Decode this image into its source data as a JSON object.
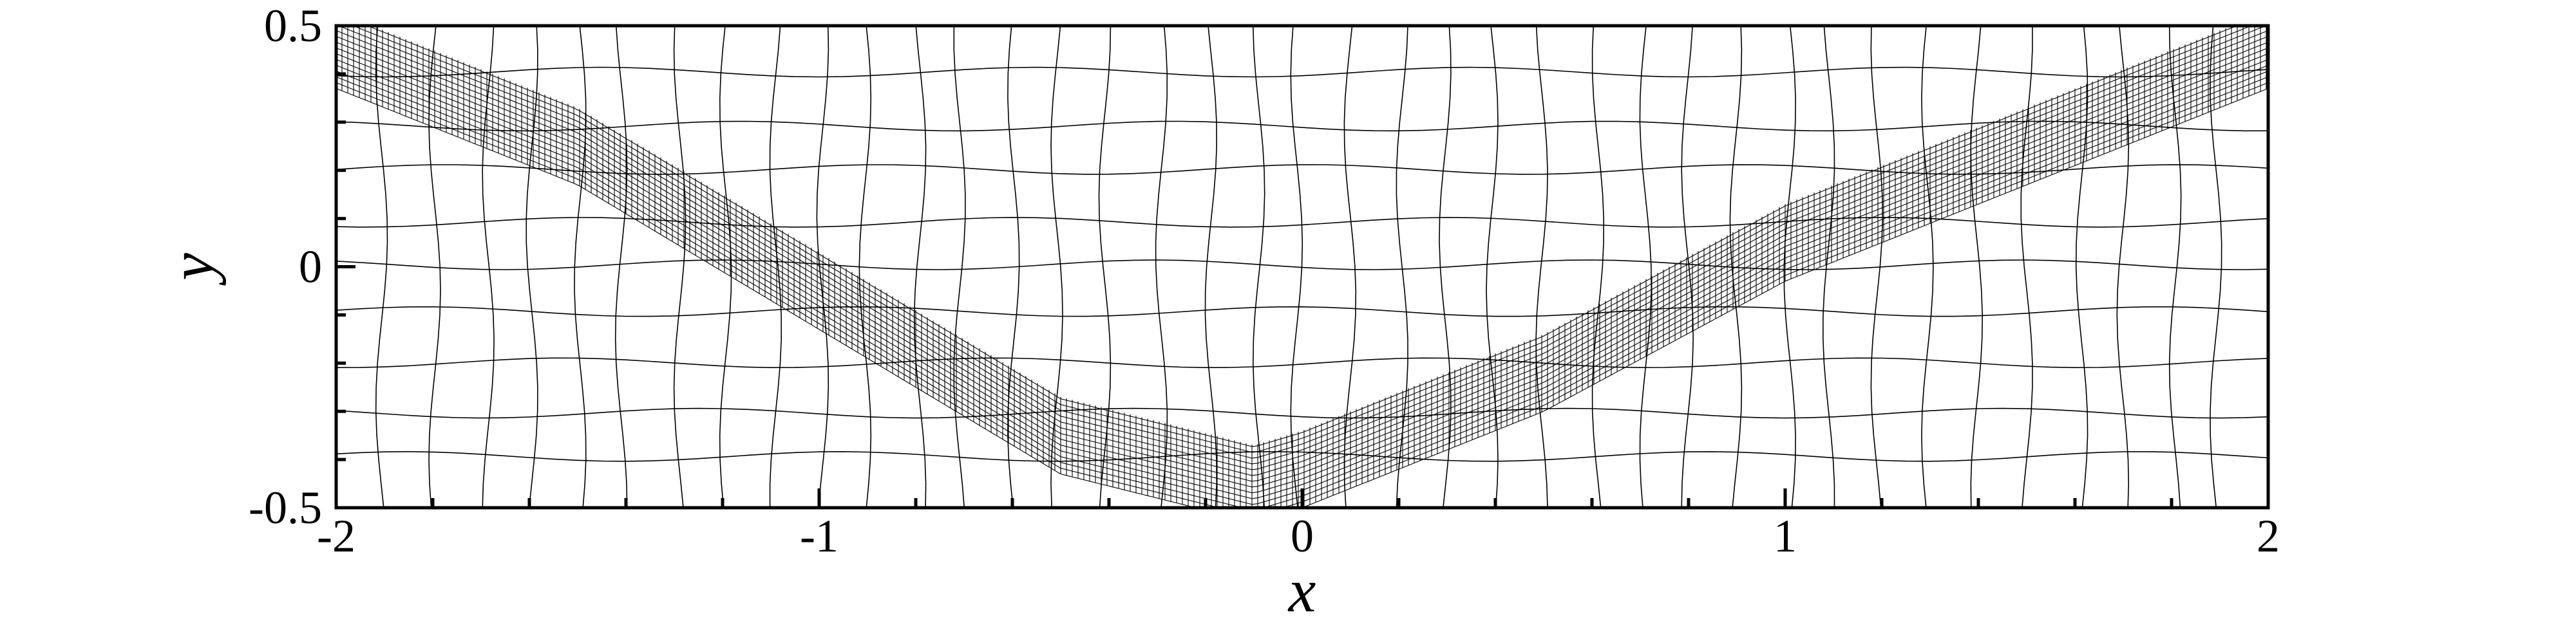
{
  "plot": {
    "type": "mesh",
    "xlabel": "x",
    "ylabel": "y",
    "xlim": [
      -2,
      2
    ],
    "ylim": [
      -0.5,
      0.5
    ],
    "x_ticks": [
      {
        "value": -2,
        "label": "-2"
      },
      {
        "value": -1,
        "label": "-1"
      },
      {
        "value": 0,
        "label": "0"
      },
      {
        "value": 1,
        "label": "1"
      },
      {
        "value": 2,
        "label": "2"
      }
    ],
    "y_ticks": [
      {
        "value": -0.5,
        "label": "-0.5"
      },
      {
        "value": 0,
        "label": "0"
      },
      {
        "value": 0.5,
        "label": "0.5"
      }
    ],
    "refinement_band": {
      "description_points_x": [
        -2.0,
        -1.5,
        -1.0,
        -0.5,
        -0.1,
        0.0,
        0.5,
        1.0,
        1.5,
        2.0
      ],
      "description_points_y": [
        0.45,
        0.25,
        -0.05,
        -0.35,
        -0.45,
        -0.42,
        -0.22,
        0.05,
        0.25,
        0.45
      ],
      "half_width": 0.08
    },
    "coarse_mesh": {
      "nx": 40,
      "ny": 10
    }
  }
}
